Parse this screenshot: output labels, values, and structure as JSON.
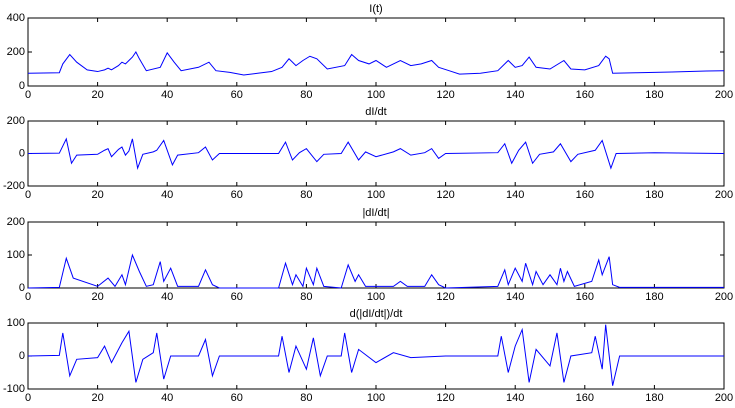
{
  "chart_data": [
    {
      "type": "line",
      "title": "I(t)",
      "x": [
        0,
        9,
        10,
        12,
        14,
        17,
        20,
        22,
        23,
        24,
        26,
        27,
        28,
        30,
        31,
        32,
        34,
        38,
        40,
        42,
        44,
        49,
        52,
        54,
        58,
        62,
        66,
        70,
        73,
        75,
        77,
        79,
        81,
        83,
        86,
        91,
        93,
        95,
        98,
        100,
        103,
        107,
        110,
        113,
        116,
        118,
        121,
        124,
        130,
        135,
        138,
        140,
        142,
        144,
        146,
        150,
        154,
        156,
        160,
        164,
        166,
        167,
        168,
        175,
        185,
        195,
        200
      ],
      "series": [
        {
          "color": "#0000ff",
          "values": [
            75,
            78,
            130,
            185,
            140,
            95,
            85,
            95,
            105,
            95,
            120,
            140,
            130,
            170,
            200,
            160,
            90,
            110,
            195,
            140,
            90,
            110,
            140,
            90,
            80,
            65,
            75,
            85,
            110,
            160,
            120,
            150,
            175,
            160,
            100,
            120,
            185,
            150,
            130,
            150,
            110,
            150,
            120,
            130,
            150,
            110,
            90,
            70,
            75,
            90,
            150,
            110,
            120,
            170,
            110,
            100,
            150,
            100,
            95,
            120,
            175,
            160,
            75,
            78,
            82,
            88,
            90
          ]
        }
      ],
      "xlim": [
        0,
        200
      ],
      "xticks": [
        0,
        20,
        40,
        60,
        80,
        100,
        120,
        140,
        160,
        180,
        200
      ],
      "ylim": [
        0,
        400
      ],
      "yticks": [
        0,
        200,
        400
      ]
    },
    {
      "type": "line",
      "title": "dI/dt",
      "x": [
        0,
        9,
        11,
        12.5,
        14,
        20,
        22,
        23,
        24,
        26,
        27,
        28,
        29,
        30,
        31.5,
        33,
        36,
        37,
        39,
        41.5,
        43,
        49,
        51,
        53,
        55,
        72,
        74,
        76,
        78,
        80,
        83,
        85,
        90,
        92,
        95,
        97,
        100,
        105,
        107,
        110,
        114,
        116,
        118,
        120,
        135,
        137,
        139,
        141,
        143,
        145,
        147,
        151,
        153,
        156,
        158,
        163,
        165,
        167.5,
        169,
        180,
        200
      ],
      "series": [
        {
          "color": "#0000ff",
          "values": [
            0,
            2,
            90,
            -60,
            -10,
            -5,
            20,
            30,
            -20,
            25,
            40,
            -10,
            15,
            90,
            -90,
            -5,
            10,
            20,
            80,
            -70,
            -10,
            5,
            40,
            -40,
            0,
            0,
            70,
            -40,
            5,
            30,
            -50,
            -5,
            0,
            70,
            -40,
            10,
            -20,
            10,
            30,
            -10,
            5,
            30,
            -30,
            0,
            5,
            60,
            -60,
            20,
            70,
            -60,
            -5,
            10,
            60,
            -50,
            -5,
            20,
            80,
            -90,
            0,
            5,
            0
          ]
        }
      ],
      "xlim": [
        0,
        200
      ],
      "xticks": [
        0,
        20,
        40,
        60,
        80,
        100,
        120,
        140,
        160,
        180,
        200
      ],
      "ylim": [
        -200,
        200
      ],
      "yticks": [
        -200,
        0,
        200
      ]
    },
    {
      "type": "line",
      "title": "|dI/dt|",
      "x": [
        0,
        9,
        11,
        13,
        20,
        23,
        25,
        27,
        28,
        30,
        32,
        34,
        36,
        38,
        39,
        41,
        43,
        49,
        51,
        53,
        55,
        72,
        74,
        76,
        77,
        79,
        80,
        82,
        83,
        85,
        90,
        92,
        94,
        95,
        97,
        105,
        107,
        109,
        114,
        116,
        118,
        120,
        135,
        137,
        138,
        140,
        142,
        143,
        145,
        146,
        148,
        150,
        152,
        153,
        154,
        155,
        157,
        162,
        164,
        165,
        167,
        168,
        170,
        200
      ],
      "series": [
        {
          "color": "#0000ff",
          "values": [
            0,
            2,
            90,
            30,
            5,
            30,
            5,
            40,
            10,
            100,
            50,
            5,
            10,
            80,
            20,
            60,
            5,
            5,
            55,
            10,
            0,
            0,
            75,
            10,
            40,
            5,
            60,
            10,
            60,
            5,
            0,
            70,
            20,
            40,
            5,
            5,
            20,
            5,
            5,
            40,
            10,
            0,
            5,
            55,
            10,
            60,
            20,
            75,
            10,
            50,
            10,
            40,
            10,
            60,
            20,
            50,
            5,
            20,
            85,
            40,
            95,
            10,
            2,
            2
          ]
        }
      ],
      "xlim": [
        0,
        200
      ],
      "xticks": [
        0,
        20,
        40,
        60,
        80,
        100,
        120,
        140,
        160,
        180,
        200
      ],
      "ylim": [
        0,
        200
      ],
      "yticks": [
        0,
        100,
        200
      ]
    },
    {
      "type": "line",
      "title": "d(|dI/dt|)/dt",
      "x": [
        0,
        9,
        10,
        12,
        14,
        20,
        22,
        24,
        27,
        29,
        31,
        33,
        36,
        37,
        39,
        41,
        49,
        51,
        53,
        55,
        72,
        73,
        75,
        77,
        80,
        82,
        84,
        86,
        90,
        91,
        93,
        95,
        100,
        105,
        110,
        120,
        135,
        136,
        138,
        140,
        142,
        144,
        146,
        150,
        152,
        154,
        156,
        162,
        163,
        165,
        166,
        168,
        170,
        200
      ],
      "series": [
        {
          "color": "#0000ff",
          "values": [
            0,
            2,
            70,
            -60,
            -10,
            -5,
            30,
            -20,
            40,
            75,
            -80,
            -10,
            10,
            70,
            -70,
            0,
            0,
            50,
            -60,
            0,
            0,
            60,
            -50,
            30,
            -40,
            55,
            -60,
            0,
            0,
            70,
            -50,
            20,
            -20,
            10,
            -5,
            0,
            0,
            60,
            -50,
            30,
            80,
            -80,
            20,
            -30,
            70,
            -80,
            0,
            10,
            60,
            -40,
            95,
            -90,
            0,
            0
          ]
        }
      ],
      "xlim": [
        0,
        200
      ],
      "xticks": [
        0,
        20,
        40,
        60,
        80,
        100,
        120,
        140,
        160,
        180,
        200
      ],
      "ylim": [
        -100,
        100
      ],
      "yticks": [
        -100,
        0,
        100
      ]
    }
  ]
}
